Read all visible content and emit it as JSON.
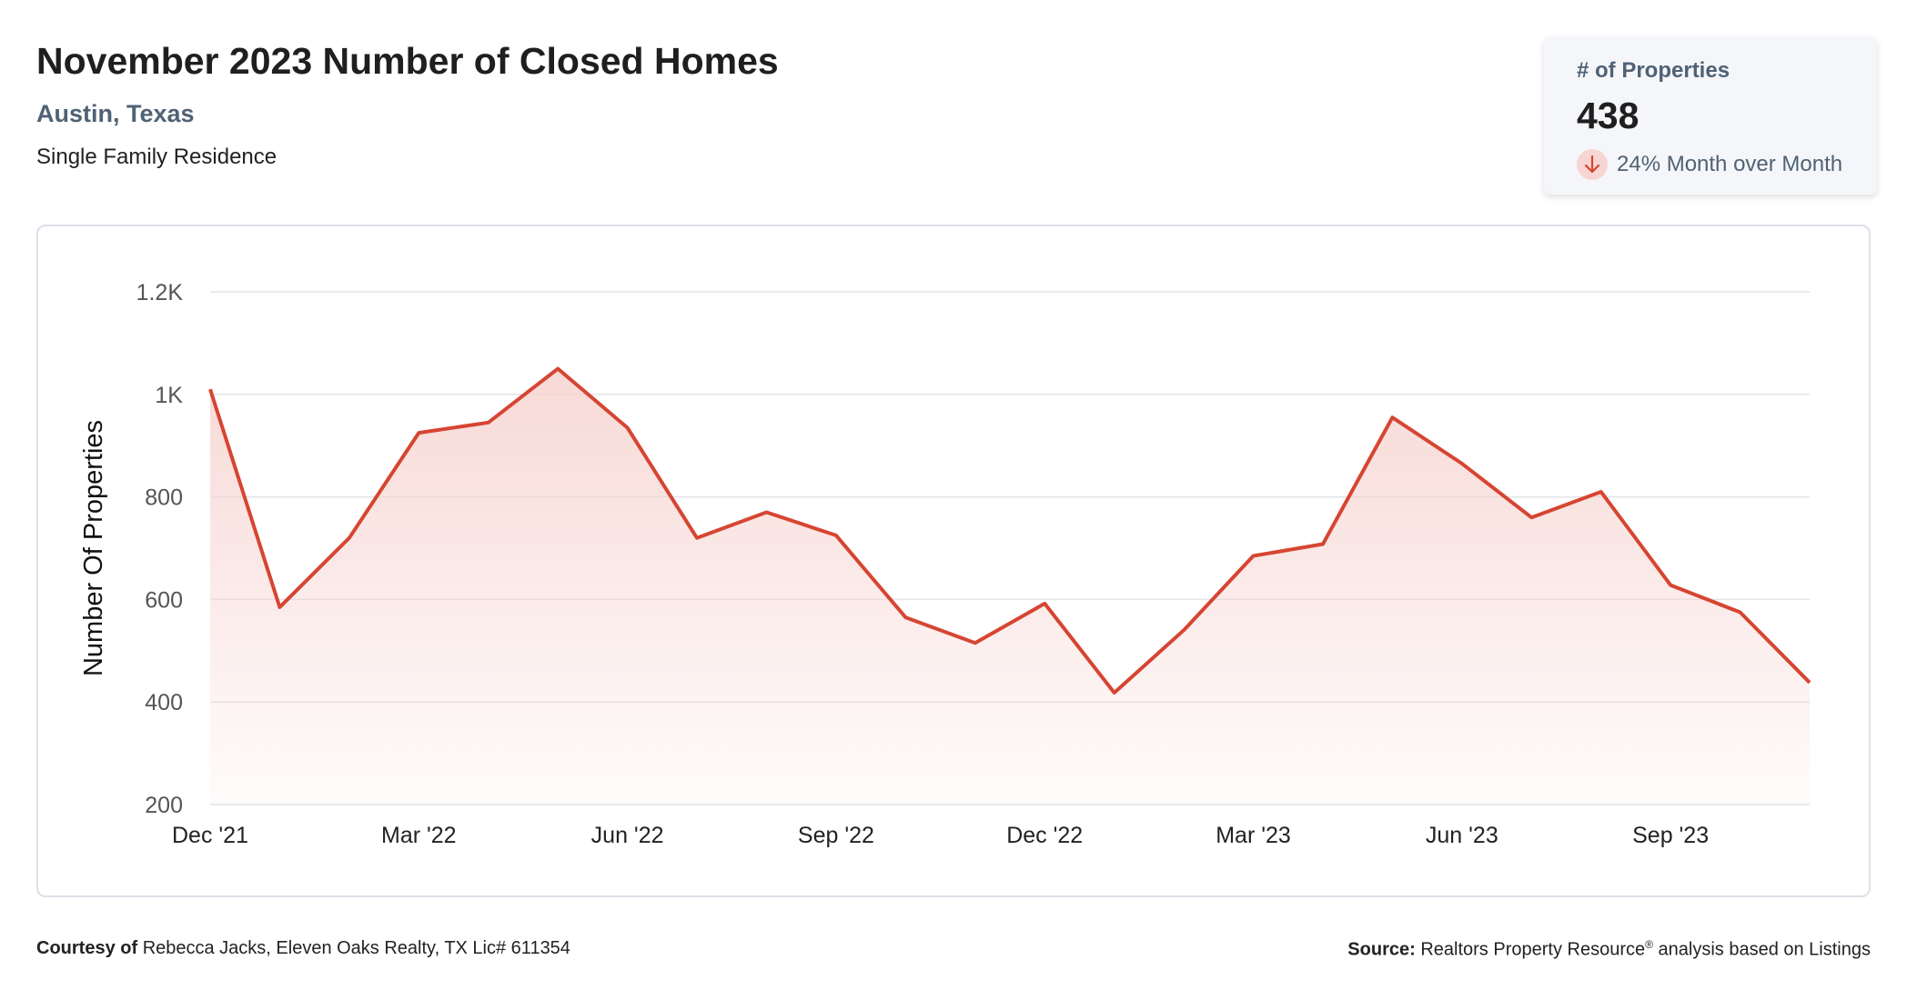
{
  "header": {
    "title": "November 2023 Number of Closed Homes",
    "location": "Austin, Texas",
    "property_type": "Single Family Residence"
  },
  "kpi": {
    "label": "# of Properties",
    "value": "438",
    "change_text": "24% Month over Month",
    "trend_icon": "arrow-down-icon",
    "trend_color": "#d64532"
  },
  "chart_data": {
    "type": "area",
    "title": "",
    "xlabel": "",
    "ylabel": "Number Of Properties",
    "ylim": [
      200,
      1200
    ],
    "yticks": [
      200,
      400,
      600,
      800,
      1000,
      1200
    ],
    "ytick_labels": [
      "200",
      "400",
      "600",
      "800",
      "1K",
      "1.2K"
    ],
    "x": [
      "Dec '21",
      "Jan '22",
      "Feb '22",
      "Mar '22",
      "Apr '22",
      "May '22",
      "Jun '22",
      "Jul '22",
      "Aug '22",
      "Sep '22",
      "Oct '22",
      "Nov '22",
      "Dec '22",
      "Jan '23",
      "Feb '23",
      "Mar '23",
      "Apr '23",
      "May '23",
      "Jun '23",
      "Jul '23",
      "Aug '23",
      "Sep '23",
      "Oct '23",
      "Nov '23"
    ],
    "xtick_labels": [
      "Dec '21",
      "Mar '22",
      "Jun '22",
      "Sep '22",
      "Dec '22",
      "Mar '23",
      "Jun '23",
      "Sep '23"
    ],
    "xtick_every": 3,
    "series": [
      {
        "name": "",
        "values": [
          1010,
          585,
          720,
          925,
          945,
          1050,
          935,
          720,
          770,
          725,
          565,
          515,
          592,
          418,
          540,
          685,
          708,
          955,
          865,
          760,
          810,
          628,
          575,
          438
        ]
      }
    ],
    "grid": true,
    "legend": "none",
    "line_color": "#d64532",
    "fill_color": "#f6d3cf"
  },
  "footer": {
    "courtesy_label": "Courtesy of",
    "courtesy_text": "Rebecca Jacks, Eleven Oaks Realty, TX Lic# 611354",
    "source_label": "Source:",
    "source_text": "Realtors Property Resource",
    "source_mark": "®",
    "source_suffix": "analysis based on Listings"
  }
}
